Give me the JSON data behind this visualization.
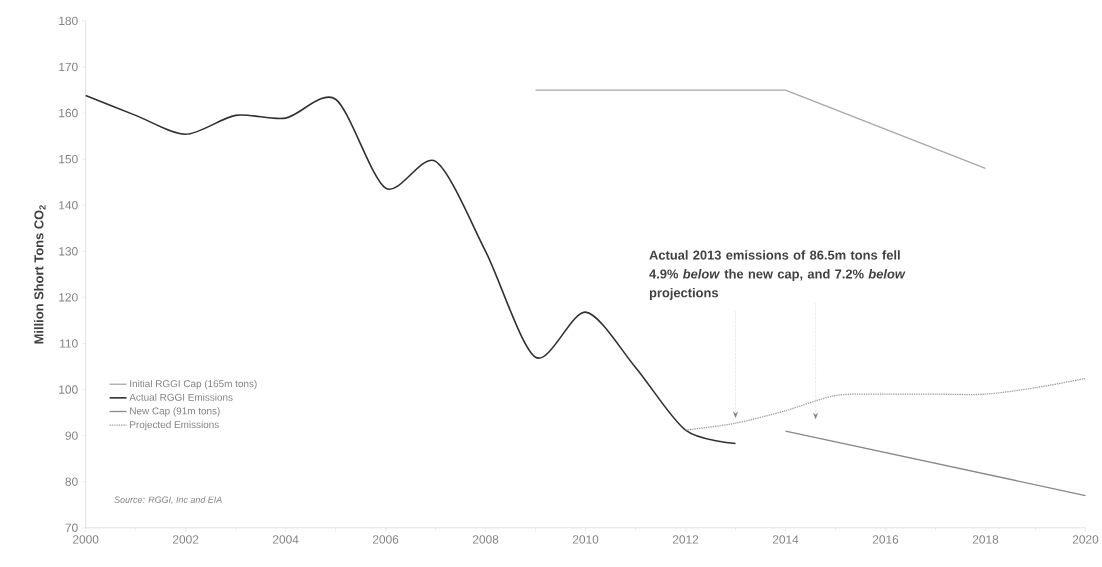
{
  "chart_data": {
    "type": "line",
    "ylabel": "Million Short Tons CO$_{2}$",
    "x": [
      2000,
      2001,
      2002,
      2003,
      2004,
      2005,
      2006,
      2007,
      2008,
      2009,
      2010,
      2011,
      2012,
      2013
    ],
    "series": [
      {
        "name": "Initial RGGI Cap (165m tons)",
        "color": "#a8a8a8",
        "x": [
          2009,
          2014,
          2018
        ],
        "values": [
          165,
          165,
          148
        ]
      },
      {
        "name": "Actual RGGI Emissions",
        "color": "#303030",
        "values": [
          163.8,
          159.5,
          155.4,
          159.5,
          158.9,
          163,
          143.7,
          149.5,
          130,
          107,
          116.8,
          104.8,
          91.2,
          88.3
        ]
      },
      {
        "name": "New Cap (91m tons)",
        "color": "#888888",
        "x": [
          2014,
          2020
        ],
        "values": [
          91,
          77
        ]
      },
      {
        "name": "Projected Emissions",
        "color": "#999999",
        "line_style": "dotted",
        "x": [
          2012,
          2013,
          2014,
          2015,
          2016,
          2017,
          2018,
          2019,
          2020
        ],
        "values": [
          91.2,
          92.7,
          95.4,
          98.7,
          99,
          99,
          99,
          100.4,
          102.4
        ]
      }
    ],
    "xlim": [
      2000,
      2020
    ],
    "xticks": [
      2000,
      2002,
      2004,
      2006,
      2008,
      2010,
      2012,
      2014,
      2016,
      2018,
      2020
    ],
    "ylim": [
      70,
      180
    ],
    "yticks": [
      70,
      80,
      90,
      100,
      110,
      120,
      130,
      140,
      150,
      160,
      170,
      180
    ],
    "grid": false,
    "legend": "left",
    "marker": "none",
    "line_style": "solid",
    "annotations": [
      "Actual 2013 emissions of 86.5m tons fell 4.9% *below* the new cap, and 7.2% *below* projections",
      "Source: RGGI, Inc and EIA"
    ]
  }
}
